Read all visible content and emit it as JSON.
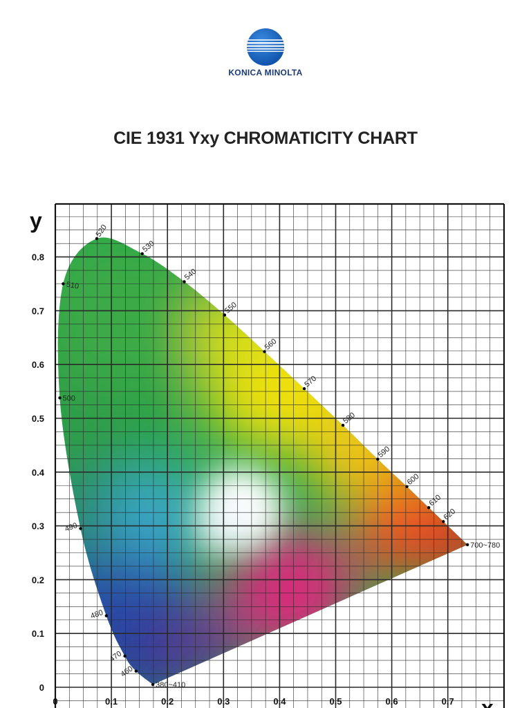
{
  "brand": {
    "name": "KONICA MINOLTA",
    "globe_color": "#1a63b8"
  },
  "title": "CIE 1931 Yxy CHROMATICITY CHART",
  "chart_data": {
    "type": "scatter",
    "title": "CIE 1931 Yxy CHROMATICITY CHART",
    "xlabel": "x",
    "ylabel": "y",
    "xlim": [
      0,
      0.8
    ],
    "ylim": [
      0,
      0.86
    ],
    "grid": true,
    "x_ticks": [
      "0",
      "0.1",
      "0.2",
      "0.3",
      "0.4",
      "0.5",
      "0.6",
      "0.7"
    ],
    "y_ticks": [
      "0",
      "0.1",
      "0.2",
      "0.3",
      "0.4",
      "0.5",
      "0.6",
      "0.7",
      "0.8"
    ],
    "series": [
      {
        "points": [
          {
            "label": "380~410",
            "x": 0.174,
            "y": 0.005
          },
          {
            "label": "460",
            "x": 0.144,
            "y": 0.03
          },
          {
            "label": "470",
            "x": 0.124,
            "y": 0.058
          },
          {
            "label": "480",
            "x": 0.091,
            "y": 0.133
          },
          {
            "label": "490",
            "x": 0.045,
            "y": 0.295
          },
          {
            "label": "500",
            "x": 0.008,
            "y": 0.538
          },
          {
            "label": "510",
            "x": 0.014,
            "y": 0.75
          },
          {
            "label": "520",
            "x": 0.074,
            "y": 0.834
          },
          {
            "label": "530",
            "x": 0.155,
            "y": 0.806
          },
          {
            "label": "540",
            "x": 0.23,
            "y": 0.754
          },
          {
            "label": "550",
            "x": 0.302,
            "y": 0.692
          },
          {
            "label": "560",
            "x": 0.373,
            "y": 0.624
          },
          {
            "label": "570",
            "x": 0.444,
            "y": 0.555
          },
          {
            "label": "580",
            "x": 0.513,
            "y": 0.487
          },
          {
            "label": "590",
            "x": 0.575,
            "y": 0.424
          },
          {
            "label": "600",
            "x": 0.627,
            "y": 0.373
          },
          {
            "label": "610",
            "x": 0.666,
            "y": 0.334
          },
          {
            "label": "620",
            "x": 0.692,
            "y": 0.308
          },
          {
            "label": "700~780",
            "x": 0.735,
            "y": 0.265
          }
        ]
      }
    ],
    "colors": {
      "green": "#2aa84a",
      "yellow": "#f0e010",
      "orange": "#f08a10",
      "red": "#e03020",
      "blue": "#2a4fa8",
      "magenta": "#d82c7a",
      "white_point": "#ffffff"
    }
  }
}
